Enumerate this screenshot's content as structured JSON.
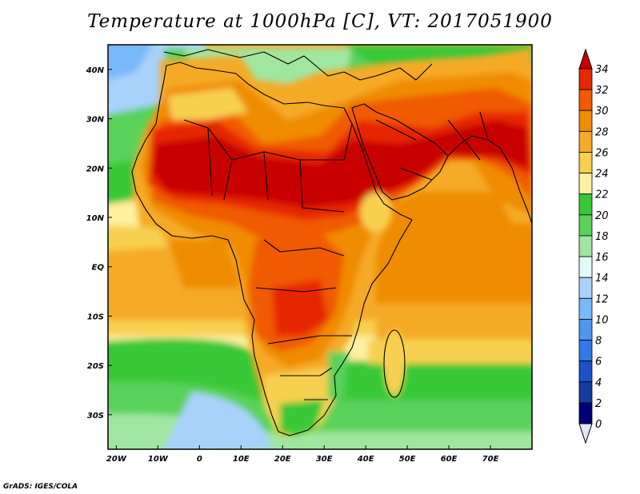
{
  "title": "Temperature at 1000hPa [C], VT: 2017051900",
  "credit": "GrADS: IGES/COLA",
  "map": {
    "lon_range": [
      -22,
      80
    ],
    "lat_range": [
      -37,
      45
    ],
    "lon_ticks": [
      {
        "v": -20,
        "label": "20W"
      },
      {
        "v": -10,
        "label": "10W"
      },
      {
        "v": 0,
        "label": "0"
      },
      {
        "v": 10,
        "label": "10E"
      },
      {
        "v": 20,
        "label": "20E"
      },
      {
        "v": 30,
        "label": "30E"
      },
      {
        "v": 40,
        "label": "40E"
      },
      {
        "v": 50,
        "label": "50E"
      },
      {
        "v": 60,
        "label": "60E"
      },
      {
        "v": 70,
        "label": "70E"
      }
    ],
    "lat_ticks": [
      {
        "v": 40,
        "label": "40N"
      },
      {
        "v": 30,
        "label": "30N"
      },
      {
        "v": 20,
        "label": "20N"
      },
      {
        "v": 10,
        "label": "10N"
      },
      {
        "v": 0,
        "label": "EQ"
      },
      {
        "v": -10,
        "label": "10S"
      },
      {
        "v": -20,
        "label": "20S"
      },
      {
        "v": -30,
        "label": "30S"
      }
    ]
  },
  "colorbar": {
    "levels": [
      "34",
      "32",
      "30",
      "28",
      "26",
      "24",
      "22",
      "20",
      "18",
      "16",
      "14",
      "12",
      "10",
      "8",
      "6",
      "4",
      "2",
      "0"
    ],
    "colors": [
      "#c80000",
      "#e62800",
      "#f05a00",
      "#f08c00",
      "#f5aa28",
      "#f8d050",
      "#fdf0a0",
      "#37c837",
      "#5ad25a",
      "#a0e6a0",
      "#e2fafa",
      "#a8d2fa",
      "#78b9fa",
      "#5096f0",
      "#3278e6",
      "#1e50c8",
      "#143ca0",
      "#000078",
      "#e6e6fa"
    ]
  }
}
